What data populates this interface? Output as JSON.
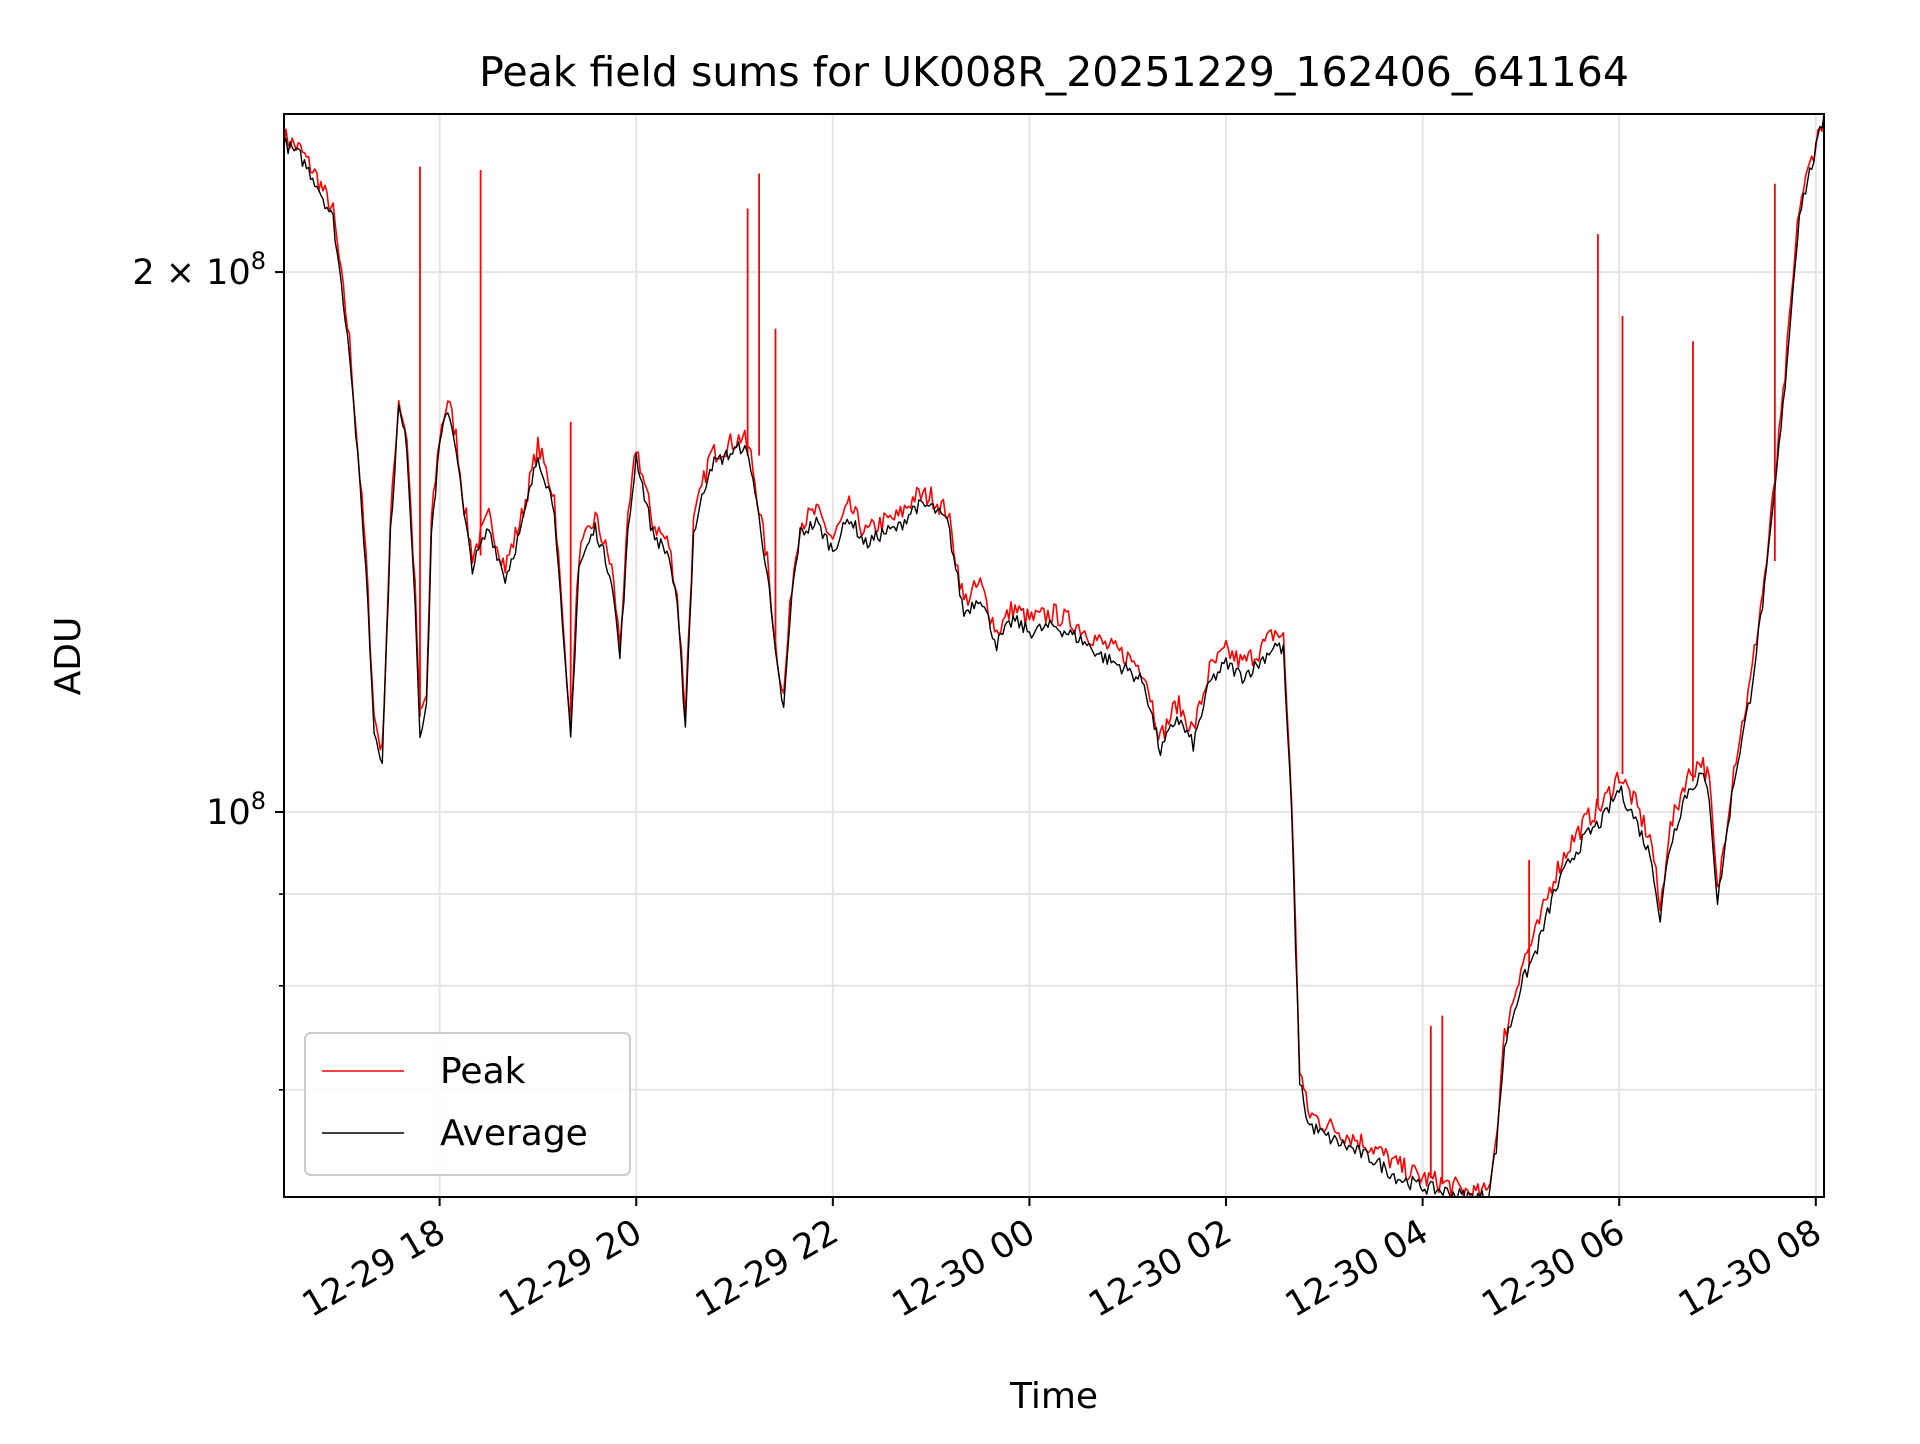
{
  "chart_data": {
    "type": "line",
    "title": "Peak field sums for UK008R_20251229_162406_641164",
    "xlabel": "Time",
    "ylabel": "ADU",
    "y_scale": "log",
    "xlim": [
      "2025-12-29 16:25",
      "2025-12-30 08:05"
    ],
    "ylim": [
      61000000,
      245000000
    ],
    "grid": true,
    "legend_position": "lower-left",
    "x_ticks": [
      {
        "value": "2025-12-29 18:00",
        "label": "12-29 18"
      },
      {
        "value": "2025-12-29 20:00",
        "label": "12-29 20"
      },
      {
        "value": "2025-12-29 22:00",
        "label": "12-29 22"
      },
      {
        "value": "2025-12-30 00:00",
        "label": "12-30 00"
      },
      {
        "value": "2025-12-30 02:00",
        "label": "12-30 02"
      },
      {
        "value": "2025-12-30 04:00",
        "label": "12-30 04"
      },
      {
        "value": "2025-12-30 06:00",
        "label": "12-30 06"
      },
      {
        "value": "2025-12-30 08:00",
        "label": "12-30 08"
      }
    ],
    "y_major_ticks": [
      {
        "value": 100000000,
        "mantissa": "",
        "base": "10",
        "exp": "8"
      },
      {
        "value": 200000000,
        "mantissa": "2 × ",
        "base": "10",
        "exp": "8"
      }
    ],
    "y_minor_ticks": [
      70000000,
      80000000,
      90000000
    ],
    "series": [
      {
        "name": "Peak",
        "color": "#ff0000",
        "x": [
          "2025-12-29 16:25",
          "2025-12-29 16:35",
          "2025-12-29 16:45",
          "2025-12-29 16:55",
          "2025-12-29 17:05",
          "2025-12-29 17:15",
          "2025-12-29 17:20",
          "2025-12-29 17:25",
          "2025-12-29 17:30",
          "2025-12-29 17:35",
          "2025-12-29 17:40",
          "2025-12-29 17:45",
          "2025-12-29 17:48",
          "2025-12-29 17:52",
          "2025-12-29 17:55",
          "2025-12-29 18:00",
          "2025-12-29 18:05",
          "2025-12-29 18:10",
          "2025-12-29 18:15",
          "2025-12-29 18:20",
          "2025-12-29 18:30",
          "2025-12-29 18:40",
          "2025-12-29 18:50",
          "2025-12-29 19:00",
          "2025-12-29 19:10",
          "2025-12-29 19:15",
          "2025-12-29 19:20",
          "2025-12-29 19:25",
          "2025-12-29 19:35",
          "2025-12-29 19:45",
          "2025-12-29 19:50",
          "2025-12-29 19:55",
          "2025-12-29 20:00",
          "2025-12-29 20:10",
          "2025-12-29 20:20",
          "2025-12-29 20:25",
          "2025-12-29 20:30",
          "2025-12-29 20:35",
          "2025-12-29 20:45",
          "2025-12-29 20:55",
          "2025-12-29 21:05",
          "2025-12-29 21:10",
          "2025-12-29 21:20",
          "2025-12-29 21:25",
          "2025-12-29 21:30",
          "2025-12-29 21:35",
          "2025-12-29 21:40",
          "2025-12-29 21:50",
          "2025-12-29 22:00",
          "2025-12-29 22:10",
          "2025-12-29 22:20",
          "2025-12-29 22:30",
          "2025-12-29 22:40",
          "2025-12-29 22:50",
          "2025-12-29 23:00",
          "2025-12-29 23:10",
          "2025-12-29 23:20",
          "2025-12-29 23:30",
          "2025-12-29 23:40",
          "2025-12-29 23:50",
          "2025-12-30 00:00",
          "2025-12-30 00:15",
          "2025-12-30 00:30",
          "2025-12-30 00:45",
          "2025-12-30 01:00",
          "2025-12-30 01:10",
          "2025-12-30 01:20",
          "2025-12-30 01:30",
          "2025-12-30 01:40",
          "2025-12-30 01:50",
          "2025-12-30 02:00",
          "2025-12-30 02:10",
          "2025-12-30 02:20",
          "2025-12-30 02:30",
          "2025-12-30 02:35",
          "2025-12-30 02:40",
          "2025-12-30 02:45",
          "2025-12-30 02:50",
          "2025-12-30 03:00",
          "2025-12-30 03:15",
          "2025-12-30 03:30",
          "2025-12-30 03:45",
          "2025-12-30 04:00",
          "2025-12-30 04:15",
          "2025-12-30 04:25",
          "2025-12-30 04:30",
          "2025-12-30 04:35",
          "2025-12-30 04:40",
          "2025-12-30 04:45",
          "2025-12-30 04:50",
          "2025-12-30 05:00",
          "2025-12-30 05:10",
          "2025-12-30 05:20",
          "2025-12-30 05:30",
          "2025-12-30 05:40",
          "2025-12-30 05:50",
          "2025-12-30 06:00",
          "2025-12-30 06:10",
          "2025-12-30 06:20",
          "2025-12-30 06:25",
          "2025-12-30 06:30",
          "2025-12-30 06:40",
          "2025-12-30 06:50",
          "2025-12-30 06:55",
          "2025-12-30 07:00",
          "2025-12-30 07:10",
          "2025-12-30 07:20",
          "2025-12-30 07:30",
          "2025-12-30 07:40",
          "2025-12-30 07:50",
          "2025-12-30 08:00",
          "2025-12-30 08:05"
        ],
        "y": [
          238000000,
          234000000,
          226000000,
          216000000,
          183000000,
          139000000,
          113000000,
          108000000,
          145000000,
          170000000,
          162000000,
          133000000,
          113000000,
          116000000,
          145000000,
          162000000,
          170000000,
          162000000,
          148000000,
          139000000,
          146000000,
          137000000,
          146000000,
          160000000,
          150000000,
          128000000,
          112000000,
          139000000,
          146000000,
          137000000,
          124000000,
          145000000,
          160000000,
          145000000,
          141000000,
          132000000,
          114000000,
          145000000,
          158000000,
          160000000,
          162000000,
          158000000,
          138000000,
          124000000,
          116000000,
          134000000,
          145000000,
          147000000,
          142000000,
          148000000,
          143000000,
          145000000,
          146000000,
          150000000,
          150000000,
          147000000,
          131000000,
          134000000,
          126000000,
          130000000,
          128000000,
          129000000,
          127000000,
          124000000,
          122000000,
          120000000,
          110000000,
          115000000,
          111000000,
          120000000,
          123000000,
          121000000,
          123000000,
          126000000,
          125000000,
          102000000,
          72000000,
          68000000,
          67000000,
          66000000,
          65000000,
          63500000,
          62500000,
          62000000,
          61500000,
          61300000,
          61200000,
          61500000,
          66000000,
          75000000,
          82000000,
          86000000,
          92000000,
          96000000,
          99000000,
          101000000,
          105000000,
          101000000,
          96000000,
          88000000,
          97000000,
          104000000,
          107000000,
          104000000,
          90000000,
          106000000,
          118000000,
          138000000,
          170000000,
          218000000,
          236000000,
          245000000
        ],
        "spikes": [
          {
            "x": "2025-12-29 18:25",
            "y": 228000000
          },
          {
            "x": "2025-12-29 21:08",
            "y": 217000000
          },
          {
            "x": "2025-12-29 21:15",
            "y": 227000000
          },
          {
            "x": "2025-12-29 21:25",
            "y": 186000000
          },
          {
            "x": "2025-12-29 17:48",
            "y": 229000000
          },
          {
            "x": "2025-12-29 19:20",
            "y": 165000000
          },
          {
            "x": "2025-12-30 05:47",
            "y": 210000000
          },
          {
            "x": "2025-12-30 06:02",
            "y": 189000000
          },
          {
            "x": "2025-12-30 06:45",
            "y": 183000000
          },
          {
            "x": "2025-12-30 07:35",
            "y": 224000000
          },
          {
            "x": "2025-12-30 04:05",
            "y": 76000000
          },
          {
            "x": "2025-12-30 04:12",
            "y": 77000000
          },
          {
            "x": "2025-12-30 05:05",
            "y": 94000000
          }
        ]
      },
      {
        "name": "Average",
        "color": "#000000",
        "x": [
          "2025-12-29 16:25",
          "2025-12-29 16:35",
          "2025-12-29 16:45",
          "2025-12-29 16:55",
          "2025-12-29 17:05",
          "2025-12-29 17:15",
          "2025-12-29 17:20",
          "2025-12-29 17:25",
          "2025-12-29 17:30",
          "2025-12-29 17:35",
          "2025-12-29 17:40",
          "2025-12-29 17:45",
          "2025-12-29 17:48",
          "2025-12-29 17:52",
          "2025-12-29 17:55",
          "2025-12-29 18:00",
          "2025-12-29 18:05",
          "2025-12-29 18:10",
          "2025-12-29 18:15",
          "2025-12-29 18:20",
          "2025-12-29 18:30",
          "2025-12-29 18:40",
          "2025-12-29 18:50",
          "2025-12-29 19:00",
          "2025-12-29 19:10",
          "2025-12-29 19:15",
          "2025-12-29 19:20",
          "2025-12-29 19:25",
          "2025-12-29 19:35",
          "2025-12-29 19:45",
          "2025-12-29 19:50",
          "2025-12-29 19:55",
          "2025-12-29 20:00",
          "2025-12-29 20:10",
          "2025-12-29 20:20",
          "2025-12-29 20:25",
          "2025-12-29 20:30",
          "2025-12-29 20:35",
          "2025-12-29 20:45",
          "2025-12-29 20:55",
          "2025-12-29 21:05",
          "2025-12-29 21:10",
          "2025-12-29 21:20",
          "2025-12-29 21:25",
          "2025-12-29 21:30",
          "2025-12-29 21:35",
          "2025-12-29 21:40",
          "2025-12-29 21:50",
          "2025-12-29 22:00",
          "2025-12-29 22:10",
          "2025-12-29 22:20",
          "2025-12-29 22:30",
          "2025-12-29 22:40",
          "2025-12-29 22:50",
          "2025-12-29 23:00",
          "2025-12-29 23:10",
          "2025-12-29 23:20",
          "2025-12-29 23:30",
          "2025-12-29 23:40",
          "2025-12-29 23:50",
          "2025-12-30 00:00",
          "2025-12-30 00:15",
          "2025-12-30 00:30",
          "2025-12-30 00:45",
          "2025-12-30 01:00",
          "2025-12-30 01:10",
          "2025-12-30 01:20",
          "2025-12-30 01:30",
          "2025-12-30 01:40",
          "2025-12-30 01:50",
          "2025-12-30 02:00",
          "2025-12-30 02:10",
          "2025-12-30 02:20",
          "2025-12-30 02:30",
          "2025-12-30 02:35",
          "2025-12-30 02:40",
          "2025-12-30 02:45",
          "2025-12-30 02:50",
          "2025-12-30 03:00",
          "2025-12-30 03:15",
          "2025-12-30 03:30",
          "2025-12-30 03:45",
          "2025-12-30 04:00",
          "2025-12-30 04:15",
          "2025-12-30 04:25",
          "2025-12-30 04:30",
          "2025-12-30 04:35",
          "2025-12-30 04:40",
          "2025-12-30 04:45",
          "2025-12-30 04:50",
          "2025-12-30 05:00",
          "2025-12-30 05:10",
          "2025-12-30 05:20",
          "2025-12-30 05:30",
          "2025-12-30 05:40",
          "2025-12-30 05:50",
          "2025-12-30 06:00",
          "2025-12-30 06:10",
          "2025-12-30 06:20",
          "2025-12-30 06:25",
          "2025-12-30 06:30",
          "2025-12-30 06:40",
          "2025-12-30 06:50",
          "2025-12-30 06:55",
          "2025-12-30 07:00",
          "2025-12-30 07:10",
          "2025-12-30 07:20",
          "2025-12-30 07:30",
          "2025-12-30 07:40",
          "2025-12-30 07:50",
          "2025-12-30 08:00",
          "2025-12-30 08:05"
        ],
        "y": [
          236000000,
          232000000,
          224000000,
          214000000,
          181000000,
          137000000,
          111000000,
          107000000,
          143000000,
          168000000,
          160000000,
          131000000,
          111000000,
          114000000,
          143000000,
          160000000,
          168000000,
          160000000,
          146000000,
          137000000,
          144000000,
          135000000,
          144000000,
          158000000,
          148000000,
          126000000,
          110000000,
          137000000,
          144000000,
          135000000,
          122000000,
          143000000,
          158000000,
          143000000,
          139000000,
          130000000,
          112000000,
          143000000,
          156000000,
          158000000,
          160000000,
          156000000,
          136000000,
          122000000,
          114000000,
          132000000,
          143000000,
          145000000,
          140000000,
          146000000,
          141000000,
          143000000,
          144000000,
          148000000,
          148000000,
          145000000,
          129000000,
          132000000,
          124000000,
          128000000,
          126000000,
          127000000,
          125000000,
          122000000,
          120000000,
          118000000,
          108000000,
          113000000,
          109000000,
          118000000,
          121000000,
          119000000,
          121000000,
          124000000,
          123000000,
          100000000,
          71000000,
          67000000,
          66000000,
          65000000,
          64000000,
          62500000,
          61800000,
          61400000,
          61100000,
          61000000,
          61000000,
          61200000,
          65000000,
          74000000,
          80000000,
          84000000,
          90000000,
          94000000,
          97000000,
          99000000,
          103000000,
          99000000,
          94000000,
          87000000,
          95000000,
          102000000,
          105000000,
          102000000,
          89000000,
          104000000,
          116000000,
          136000000,
          168000000,
          216000000,
          234000000,
          244000000
        ]
      }
    ]
  }
}
